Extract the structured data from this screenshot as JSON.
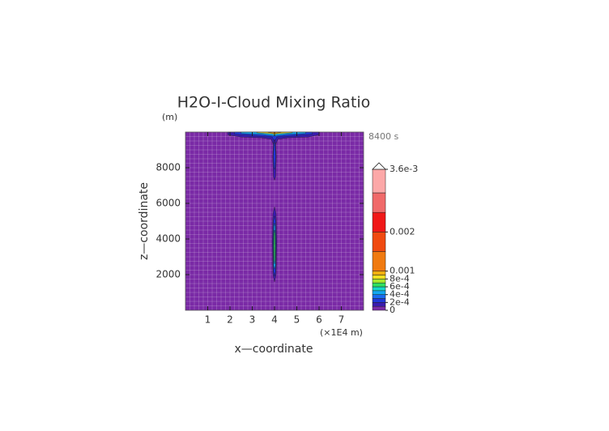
{
  "chart_data": {
    "type": "contour",
    "title": "H2O-I-Cloud Mixing Ratio",
    "y_unit": "(m)",
    "x_unit": "(×1E4 m)",
    "time_label": "8400 s",
    "x_label": "x—coordinate",
    "y_label": "z—coordinate",
    "xlim": [
      0,
      8
    ],
    "ylim": [
      0,
      10000
    ],
    "xticks": [
      1,
      2,
      3,
      4,
      5,
      6,
      7
    ],
    "yticks": [
      2000,
      4000,
      6000,
      8000
    ],
    "grid": true,
    "colorbar": {
      "levels": [
        0,
        0.0001,
        0.0002,
        0.0003,
        0.0004,
        0.0005,
        0.0006,
        0.0007,
        0.0008,
        0.0009,
        0.001,
        0.0015,
        0.002,
        0.0025,
        0.003,
        0.0036
      ],
      "colors": [
        "#7a2aa6",
        "#3a1cb0",
        "#2038d8",
        "#1a6cf0",
        "#12a8f0",
        "#16d8c8",
        "#30e060",
        "#a8e830",
        "#f0e020",
        "#f0b010",
        "#f07a10",
        "#f04a10",
        "#f01818",
        "#f06a6a",
        "#fca8a8"
      ],
      "extend_color": "#ffffff",
      "ticks": [
        0,
        {
          "value": 0.0002,
          "label": "2e-4"
        },
        {
          "value": 0.0004,
          "label": "4e-4"
        },
        {
          "value": 0.0006,
          "label": "6e-4"
        },
        {
          "value": 0.0008,
          "label": "8e-4"
        },
        0.001,
        0.002,
        {
          "value": 0.0036,
          "label": "3.6e-3"
        }
      ]
    },
    "regions": [
      {
        "level": 0.0001,
        "x": [
          1.9,
          2.5,
          3.4,
          3.85,
          3.95,
          4.05,
          4.15,
          4.6,
          5.5,
          6.0,
          6.0,
          1.9
        ],
        "z": [
          9850,
          9720,
          9680,
          9600,
          9300,
          9300,
          9600,
          9680,
          9720,
          9850,
          10000,
          10000
        ]
      },
      {
        "level": 0.0002,
        "x": [
          2.2,
          3.0,
          3.9,
          4.0,
          4.1,
          5.0,
          5.7,
          5.7,
          2.2
        ],
        "z": [
          9880,
          9800,
          9720,
          9450,
          9720,
          9800,
          9880,
          10000,
          10000
        ]
      },
      {
        "level": 0.0004,
        "x": [
          2.5,
          3.5,
          4.0,
          4.5,
          5.4,
          5.4,
          2.5
        ],
        "z": [
          9920,
          9860,
          9780,
          9860,
          9920,
          10000,
          10000
        ]
      },
      {
        "level": 0.0008,
        "x": [
          3.2,
          3.9,
          4.0,
          4.1,
          4.8,
          4.8,
          3.2
        ],
        "z": [
          9960,
          9900,
          9850,
          9900,
          9960,
          10000,
          10000
        ]
      },
      {
        "level": 0.001,
        "x": [
          3.7,
          4.0,
          4.3,
          4.3,
          3.7
        ],
        "z": [
          9980,
          9930,
          9980,
          10000,
          10000
        ]
      },
      {
        "level": 0.0001,
        "x": [
          3.95,
          3.92,
          3.95,
          4.0,
          4.05,
          4.08,
          4.05,
          4.0
        ],
        "z": [
          7500,
          8600,
          9400,
          9600,
          9400,
          8600,
          7500,
          7300
        ]
      },
      {
        "level": 0.0002,
        "x": [
          3.97,
          3.95,
          3.97,
          4.0,
          4.03,
          4.05,
          4.03,
          4.0
        ],
        "z": [
          8000,
          8700,
          9300,
          9450,
          9300,
          8700,
          8000,
          7900
        ]
      },
      {
        "level": 0.0001,
        "x": [
          3.93,
          3.9,
          3.93,
          4.0,
          4.07,
          4.1,
          4.07,
          4.0
        ],
        "z": [
          2000,
          3800,
          5400,
          5800,
          5400,
          3800,
          2000,
          1600
        ]
      },
      {
        "level": 0.0002,
        "x": [
          3.95,
          3.93,
          3.95,
          4.0,
          4.05,
          4.07,
          4.05,
          4.0
        ],
        "z": [
          2200,
          3800,
          5000,
          5300,
          5000,
          3800,
          2200,
          1900
        ]
      },
      {
        "level": 0.0004,
        "x": [
          3.96,
          3.95,
          3.97,
          4.0,
          4.03,
          4.05,
          4.04,
          4.0
        ],
        "z": [
          2500,
          3500,
          4700,
          4900,
          4700,
          3500,
          2500,
          2300
        ]
      },
      {
        "level": 0.0006,
        "x": [
          3.98,
          3.97,
          3.98,
          4.0,
          4.02,
          4.03,
          4.02,
          4.0
        ],
        "z": [
          2800,
          3600,
          4300,
          4500,
          4300,
          3600,
          2800,
          2600
        ]
      }
    ]
  }
}
